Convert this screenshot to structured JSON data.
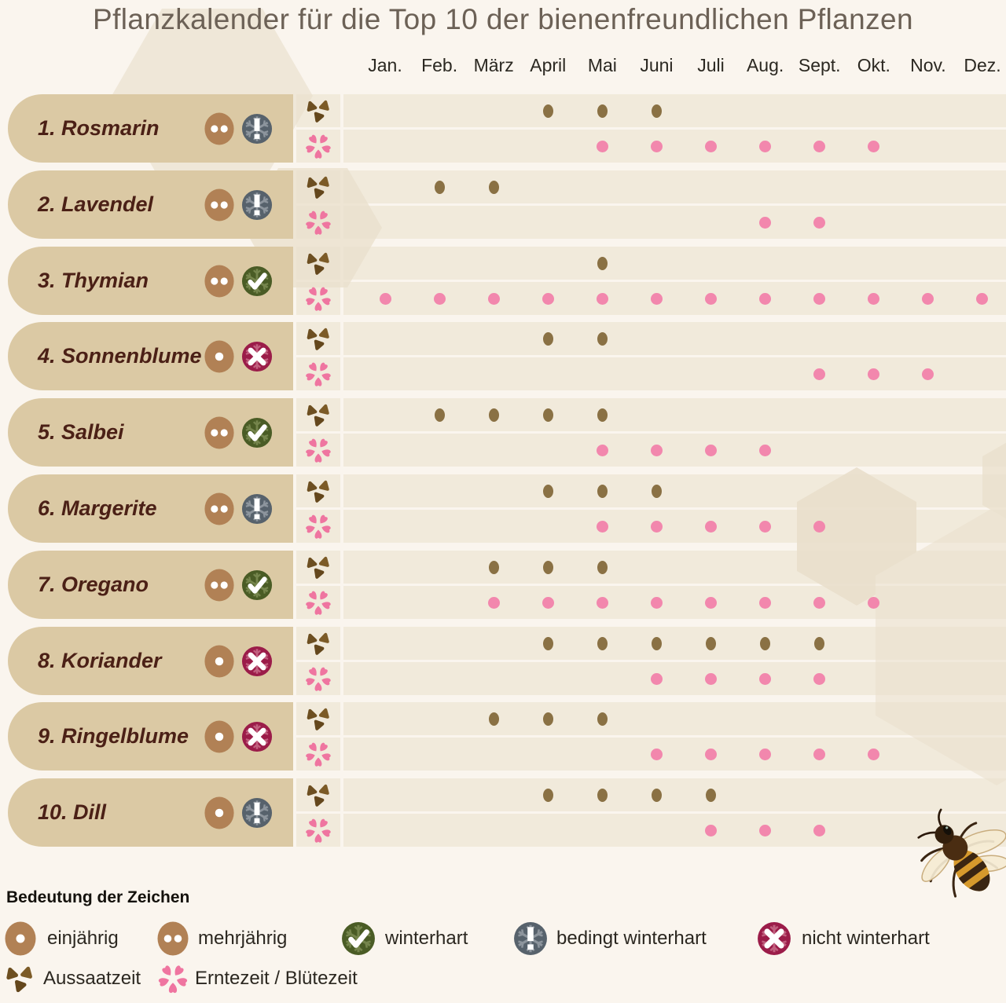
{
  "title": "Pflanzkalender für die Top 10 der bienenfreundlichen Pflanzen",
  "legend": {
    "heading": "Bedeutung der Zeichen",
    "items": [
      {
        "icon": "seed-one-dot-icon",
        "label": "einjährig"
      },
      {
        "icon": "seed-two-dots-icon",
        "label": "mehrjährig"
      },
      {
        "icon": "snowflake-check-icon",
        "label": "winterhart"
      },
      {
        "icon": "snowflake-exclamation-icon",
        "label": "bedingt winterhart"
      },
      {
        "icon": "snowflake-cross-icon",
        "label": "nicht winterhart"
      }
    ],
    "row2": [
      {
        "icon": "seeds-icon",
        "label": "Aussaatzeit"
      },
      {
        "icon": "flower-icon",
        "label": "Erntezeit / Blütezeit"
      }
    ]
  },
  "colors": {
    "background": "#faf5ee",
    "row_band": "#f3ebe0",
    "pill": "#dbc9a4",
    "plant_text": "#4b2016",
    "title_text": "#6c6156",
    "sow_dot_brown": "#8a7144",
    "harvest_dot_pink": "#f287ad",
    "seed_circle_brown": "#b18155",
    "flower_pink": "#ef75a0",
    "winterhart_green": "#4a5c25",
    "bedingt_winterhart_grey": "#57626c",
    "nicht_winterhart_maroon": "#9b1c49"
  },
  "chart_data": {
    "type": "dot-matrix-calendar",
    "title": "Pflanzkalender für die Top 10 der bienenfreundlichen Pflanzen",
    "x_labels": [
      "Jan.",
      "Feb.",
      "März",
      "April",
      "Mai",
      "Juni",
      "Juli",
      "Aug.",
      "Sept.",
      "Okt.",
      "Nov.",
      "Dez."
    ],
    "series_names": [
      "Aussaatzeit",
      "Erntezeit / Blütezeit"
    ],
    "rows": [
      {
        "label": "1. Rosmarin",
        "lifecycle": "mehrjährig",
        "hardiness": "bedingt winterhart",
        "aussaatzeit": [
          "April",
          "Mai",
          "Juni"
        ],
        "erntezeit": [
          "Mai",
          "Juni",
          "Juli",
          "Aug.",
          "Sept.",
          "Okt."
        ]
      },
      {
        "label": "2. Lavendel",
        "lifecycle": "mehrjährig",
        "hardiness": "bedingt winterhart",
        "aussaatzeit": [
          "Feb.",
          "März"
        ],
        "erntezeit": [
          "Aug.",
          "Sept."
        ]
      },
      {
        "label": "3. Thymian",
        "lifecycle": "mehrjährig",
        "hardiness": "winterhart",
        "aussaatzeit": [
          "Mai"
        ],
        "erntezeit": [
          "Jan.",
          "Feb.",
          "März",
          "April",
          "Mai",
          "Juni",
          "Juli",
          "Aug.",
          "Sept.",
          "Okt.",
          "Nov.",
          "Dez."
        ]
      },
      {
        "label": "4. Sonnenblume",
        "lifecycle": "einjährig",
        "hardiness": "nicht winterhart",
        "aussaatzeit": [
          "April",
          "Mai"
        ],
        "erntezeit": [
          "Sept.",
          "Okt.",
          "Nov."
        ]
      },
      {
        "label": "5. Salbei",
        "lifecycle": "mehrjährig",
        "hardiness": "winterhart",
        "aussaatzeit": [
          "Feb.",
          "März",
          "April",
          "Mai"
        ],
        "erntezeit": [
          "Mai",
          "Juni",
          "Juli",
          "Aug."
        ]
      },
      {
        "label": "6. Margerite",
        "lifecycle": "mehrjährig",
        "hardiness": "bedingt winterhart",
        "aussaatzeit": [
          "April",
          "Mai",
          "Juni"
        ],
        "erntezeit": [
          "Mai",
          "Juni",
          "Juli",
          "Aug.",
          "Sept."
        ]
      },
      {
        "label": "7. Oregano",
        "lifecycle": "mehrjährig",
        "hardiness": "winterhart",
        "aussaatzeit": [
          "März",
          "April",
          "Mai"
        ],
        "erntezeit": [
          "März",
          "April",
          "Mai",
          "Juni",
          "Juli",
          "Aug.",
          "Sept.",
          "Okt."
        ]
      },
      {
        "label": "8. Koriander",
        "lifecycle": "einjährig",
        "hardiness": "nicht winterhart",
        "aussaatzeit": [
          "April",
          "Mai",
          "Juni",
          "Juli",
          "Aug.",
          "Sept."
        ],
        "erntezeit": [
          "Juni",
          "Juli",
          "Aug.",
          "Sept."
        ]
      },
      {
        "label": "9. Ringelblume",
        "lifecycle": "einjährig",
        "hardiness": "nicht winterhart",
        "aussaatzeit": [
          "März",
          "April",
          "Mai"
        ],
        "erntezeit": [
          "Juni",
          "Juli",
          "Aug.",
          "Sept.",
          "Okt."
        ]
      },
      {
        "label": "10. Dill",
        "lifecycle": "einjährig",
        "hardiness": "bedingt winterhart",
        "aussaatzeit": [
          "April",
          "Mai",
          "Juni",
          "Juli"
        ],
        "erntezeit": [
          "Juli",
          "Aug.",
          "Sept."
        ]
      }
    ]
  }
}
